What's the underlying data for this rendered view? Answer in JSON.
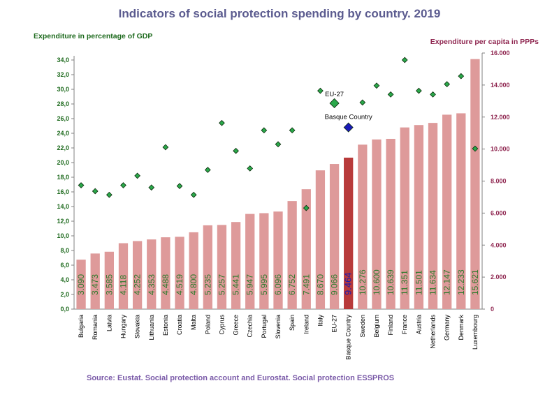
{
  "chart_data": {
    "type": "bar",
    "title": "Indicators of social protection spending by country. 2019",
    "ylabel_left": "Expenditure in percentage of GDP",
    "ylabel_right": "Expenditure per capita in PPPs",
    "source": "Source: Eustat. Social protection account and Eurostat. Social protection ESSPROS",
    "categories": [
      "Bulgaria",
      "Romania",
      "Latvia",
      "Hungary",
      "Slovakia",
      "Lithuania",
      "Estonia",
      "Croatia",
      "Malta",
      "Poland",
      "Cyprus",
      "Greece",
      "Czechia",
      "Portugal",
      "Slovenia",
      "Spain",
      "Ireland",
      "Italy",
      "EU-27",
      "Basque Country",
      "Sweden",
      "Belgium",
      "Finland",
      "France",
      "Austria",
      "Netherlands",
      "Germany",
      "Denmark",
      "Luxembourg"
    ],
    "highlight": "Basque Country",
    "series": [
      {
        "name": "Expenditure per capita in PPPs",
        "type": "bar",
        "axis": "right",
        "values": [
          3090,
          3473,
          3585,
          4118,
          4252,
          4353,
          4488,
          4519,
          4800,
          5235,
          5257,
          5441,
          5947,
          5995,
          6096,
          6752,
          7491,
          8670,
          9066,
          9464,
          10276,
          10600,
          10639,
          11351,
          11501,
          11634,
          12147,
          12233,
          15621
        ],
        "labels": [
          "3.090",
          "3.473",
          "3.585",
          "4.118",
          "4.252",
          "4.353",
          "4.488",
          "4.519",
          "4.800",
          "5.235",
          "5.257",
          "5.441",
          "5.947",
          "5.995",
          "6.096",
          "6.752",
          "7.491",
          "8.670",
          "9.066",
          "9.464",
          "10.276",
          "10.600",
          "10.639",
          "11.351",
          "11.501",
          "11.634",
          "12.147",
          "12.233",
          "15.621"
        ]
      },
      {
        "name": "Expenditure in percentage of GDP",
        "type": "scatter",
        "axis": "left",
        "values": [
          16.9,
          16.1,
          15.6,
          16.9,
          18.2,
          16.6,
          22.1,
          16.8,
          15.6,
          19.0,
          25.4,
          21.6,
          19.2,
          24.4,
          22.5,
          24.4,
          13.8,
          29.8,
          28.1,
          24.8,
          28.2,
          30.5,
          29.3,
          34.0,
          29.8,
          29.3,
          30.7,
          31.8,
          21.9
        ]
      }
    ],
    "ylim_left": [
      0,
      34
    ],
    "yticks_left": [
      "0,0",
      "2,0",
      "4,0",
      "6,0",
      "8,0",
      "10,0",
      "12,0",
      "14,0",
      "16,0",
      "18,0",
      "20,0",
      "22,0",
      "24,0",
      "26,0",
      "28,0",
      "30,0",
      "32,0",
      "34,0"
    ],
    "ylim_right": [
      0,
      16000
    ],
    "yticks_right": [
      "0",
      "2.000",
      "4.000",
      "6.000",
      "8.000",
      "10.000",
      "12.000",
      "14.000",
      "16.000"
    ],
    "annotations": [
      {
        "text": "EU-27",
        "target": "EU-27"
      },
      {
        "text": "Basque Country",
        "target": "Basque Country"
      }
    ],
    "colors": {
      "bar": "#de9a9a",
      "bar_highlight": "#b83a3a",
      "marker": "#2aa84a",
      "marker_eu": "#2aa84a",
      "marker_highlight": "#1a1ab8",
      "value_label": "#2a7a2a",
      "value_label_highlight": "#1a1ab0"
    }
  }
}
